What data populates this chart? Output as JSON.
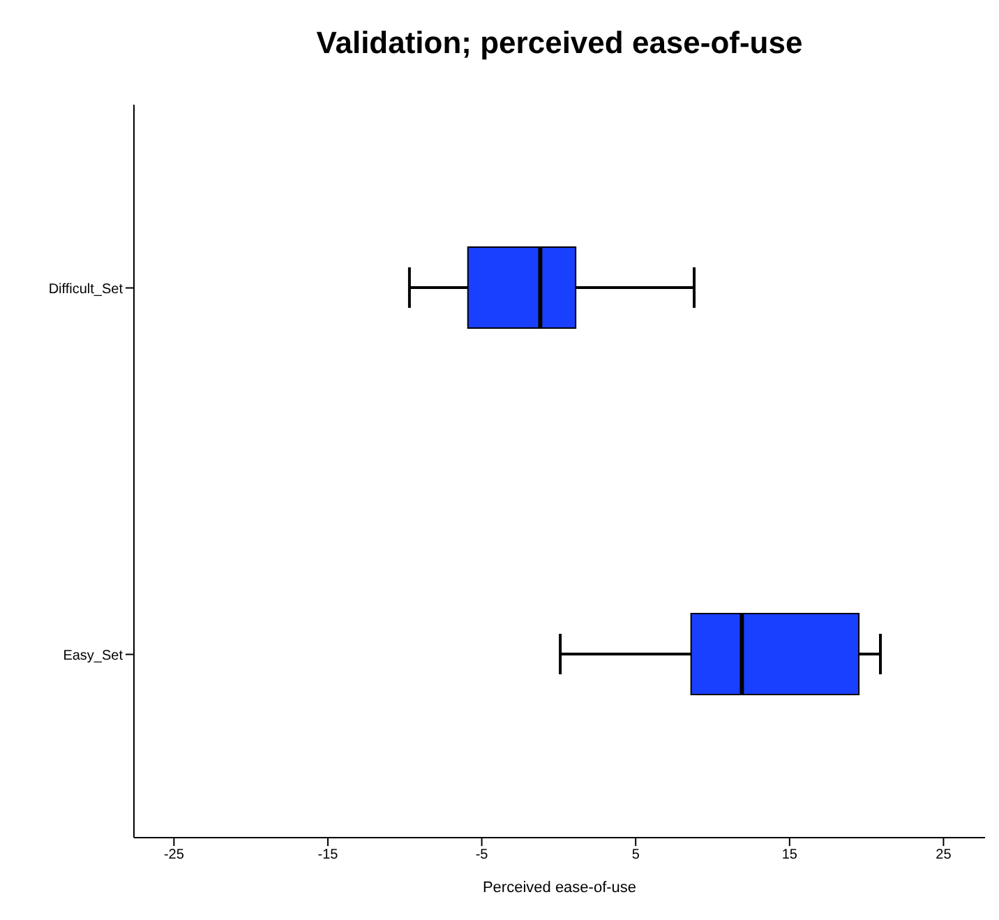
{
  "chart_data": {
    "type": "box",
    "title": "Validation; perceived ease-of-use",
    "xlabel": "Perceived ease-of-use",
    "orientation": "horizontal",
    "categories": [
      "Difficult_Set",
      "Easy_Set"
    ],
    "color": "#1a40ff",
    "xlim": [
      -27.6,
      27.7
    ],
    "xticks": [
      -25,
      -15,
      -5,
      5,
      15,
      25
    ],
    "grid": false,
    "legend": false,
    "boxes": [
      {
        "low": -9.7,
        "q1": -5.9,
        "median": -1.2,
        "q3": 1.1,
        "high": 8.8
      },
      {
        "low": 0.1,
        "q1": 8.6,
        "median": 11.9,
        "q3": 19.5,
        "high": 20.9
      }
    ]
  }
}
